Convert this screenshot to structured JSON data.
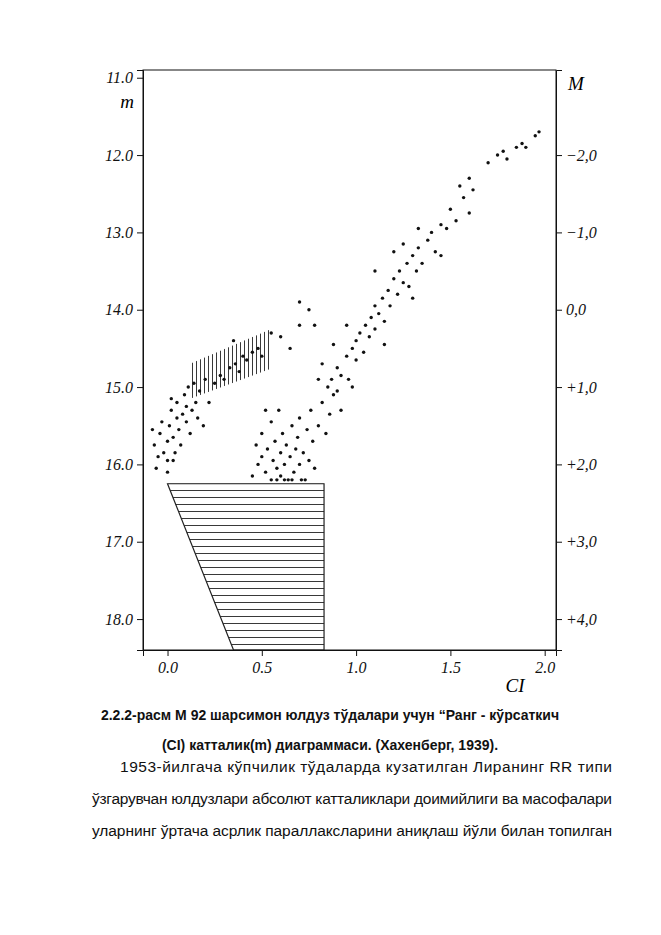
{
  "chart_data": {
    "type": "scatter",
    "x_label": "CI",
    "y_label": "m",
    "y2_label": "M",
    "xlim": [
      -0.13,
      2.06
    ],
    "ylim": [
      10.9,
      18.4
    ],
    "y2lim": [
      -3.1,
      4.4
    ],
    "xticks": [
      {
        "value": 0,
        "label": "0.0"
      },
      {
        "value": 0.5,
        "label": "0.5"
      },
      {
        "value": 1,
        "label": "1.0"
      },
      {
        "value": 1.5,
        "label": "1.5"
      },
      {
        "value": 2,
        "label": "2.0"
      }
    ],
    "yticks": [
      {
        "value": 11,
        "label": "11.0"
      },
      {
        "value": 12,
        "label": "12.0"
      },
      {
        "value": 13,
        "label": "13.0"
      },
      {
        "value": 14,
        "label": "14.0"
      },
      {
        "value": 15,
        "label": "15.0"
      },
      {
        "value": 16,
        "label": "16.0"
      },
      {
        "value": 17,
        "label": "17.0"
      },
      {
        "value": 18,
        "label": "18.0"
      }
    ],
    "y2ticks": [
      {
        "value": -2,
        "label": "−2,0"
      },
      {
        "value": -1,
        "label": "−1,0"
      },
      {
        "value": 0,
        "label": "0,0"
      },
      {
        "value": 1,
        "label": "+1,0"
      },
      {
        "value": 2,
        "label": "+2,0"
      },
      {
        "value": 3,
        "label": "+3,0"
      },
      {
        "value": 4,
        "label": "+4,0"
      }
    ],
    "color": "#111111",
    "marker": "circle",
    "x": [
      -0.08,
      -0.07,
      -0.05,
      -0.04,
      -0.03,
      -0.02,
      0,
      0,
      0.01,
      0.02,
      0.03,
      0.04,
      0.05,
      0.05,
      0.06,
      0.07,
      0.08,
      0.09,
      0.1,
      0.1,
      0.11,
      0.12,
      0.13,
      0.14,
      0.15,
      0.16,
      0.17,
      0.19,
      0.2,
      0.22,
      0.02,
      -0.06,
      0,
      0.03,
      0.25,
      0.28,
      0.3,
      0.33,
      0.36,
      0.38,
      0.4,
      0.42,
      0.45,
      0.48,
      0.5,
      0.55,
      0.6,
      0.7,
      0.35,
      0.65,
      0.48,
      0.5,
      0.52,
      0.53,
      0.55,
      0.56,
      0.57,
      0.58,
      0.6,
      0.6,
      0.61,
      0.62,
      0.63,
      0.64,
      0.65,
      0.66,
      0.67,
      0.68,
      0.69,
      0.7,
      0.7,
      0.72,
      0.73,
      0.74,
      0.75,
      0.76,
      0.77,
      0.78,
      0.8,
      0.82,
      0.84,
      0.86,
      0.88,
      0.5,
      0.55,
      0.58,
      0.62,
      0.66,
      0.71,
      0.47,
      0.52,
      0.59,
      0.45,
      0.85,
      0.87,
      0.9,
      0.9,
      0.92,
      0.95,
      0.96,
      0.98,
      1.0,
      1.0,
      1.02,
      1.04,
      1.05,
      1.07,
      1.08,
      1.1,
      1.1,
      1.12,
      1.14,
      1.15,
      1.17,
      1.18,
      1.2,
      1.22,
      1.23,
      1.25,
      1.27,
      1.28,
      1.3,
      1.32,
      1.33,
      1.35,
      1.38,
      1.4,
      1.42,
      1.45,
      1.5,
      1.53,
      1.55,
      1.57,
      1.6,
      1.62,
      1.7,
      1.75,
      1.78,
      1.8,
      1.85,
      1.88,
      1.9,
      1.95,
      1.97,
      1.6,
      1.45,
      1.33,
      1.2,
      0.95,
      0.82,
      0.78,
      0.88,
      1.1,
      1.25,
      1.48,
      1.3,
      1.15,
      0.98,
      0.92,
      0.8,
      0.75,
      0.7
    ],
    "values": [
      15.55,
      15.75,
      15.9,
      15.6,
      15.45,
      15.85,
      15.7,
      15.95,
      15.5,
      15.3,
      15.65,
      15.85,
      15.4,
      15.2,
      15.55,
      15.75,
      15.35,
      15.1,
      15.45,
      15.25,
      15.0,
      15.6,
      15.3,
      14.95,
      15.2,
      15.4,
      15.05,
      15.5,
      14.9,
      15.2,
      15.15,
      16.05,
      16.1,
      15.95,
      14.95,
      14.85,
      14.9,
      14.75,
      14.7,
      14.8,
      14.6,
      14.65,
      14.55,
      14.5,
      14.6,
      14.3,
      14.35,
      14.2,
      14.4,
      14.5,
      16.0,
      15.9,
      16.1,
      15.8,
      16.2,
      15.95,
      15.7,
      16.05,
      15.85,
      16.15,
      15.6,
      16.0,
      15.75,
      16.2,
      15.9,
      15.5,
      16.1,
      15.8,
      15.65,
      16.0,
      15.4,
      15.85,
      16.2,
      15.55,
      15.95,
      15.3,
      15.7,
      16.05,
      15.5,
      15.2,
      15.6,
      15.35,
      15.1,
      15.6,
      15.45,
      16.2,
      16.2,
      16.2,
      16.2,
      15.75,
      15.3,
      15.3,
      16.15,
      15.0,
      14.9,
      15.05,
      14.75,
      14.85,
      14.6,
      14.9,
      14.5,
      14.65,
      14.4,
      14.3,
      14.55,
      14.2,
      14.35,
      14.1,
      14.25,
      13.95,
      14.05,
      13.85,
      14.15,
      13.75,
      13.95,
      13.6,
      13.8,
      13.5,
      13.65,
      13.4,
      13.7,
      13.3,
      13.5,
      13.2,
      13.4,
      13.1,
      13.0,
      13.25,
      12.9,
      12.7,
      12.85,
      12.4,
      12.55,
      12.3,
      12.45,
      12.1,
      12.0,
      11.95,
      12.05,
      11.9,
      11.85,
      11.9,
      11.75,
      11.7,
      12.75,
      13.3,
      12.95,
      13.25,
      14.2,
      14.7,
      14.2,
      14.45,
      13.5,
      13.15,
      12.95,
      13.85,
      14.45,
      15.0,
      15.3,
      14.9,
      14.0,
      13.9
    ],
    "regions": [
      {
        "x": [
          0.0,
          0.83,
          0.83,
          0.35
        ],
        "values": [
          16.25,
          16.25,
          18.4,
          18.4
        ],
        "line_style": "horizontal"
      },
      {
        "x": [
          0.12,
          0.54,
          0.54,
          0.12
        ],
        "values": [
          14.7,
          14.26,
          14.77,
          15.15
        ],
        "line_style": "vertical"
      }
    ]
  },
  "caption": [
    "2.2.2-расм М 92 шарсимон юлдуз тўдалари учун “Ранг - кўрсаткич",
    "(CI) катталик(m) диаграммаси. (Хахенберг, 1939)."
  ],
  "paragraph": [
    "1953-йилгача кўпчилик тўдаларда кузатилган Лиранинг RR типи",
    "ўзгарувчан юлдузлари абсолют катталиклари доимийлиги ва масофалари",
    "уларнинг ўртача асрлик параллаксларини аниқлаш йўли билан топилган"
  ]
}
